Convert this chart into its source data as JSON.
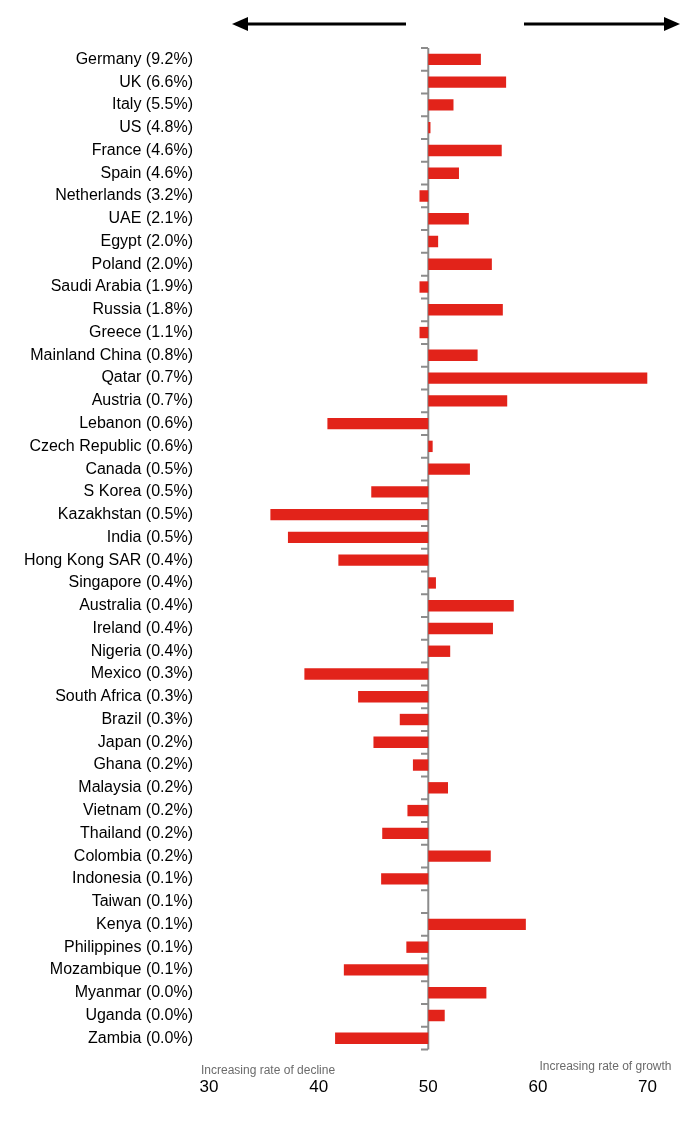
{
  "chart_data": {
    "type": "bar",
    "orientation": "horizontal",
    "categories": [
      "Germany (9.2%)",
      "UK (6.6%)",
      "Italy (5.5%)",
      "US (4.8%)",
      "France (4.6%)",
      "Spain (4.6%)",
      "Netherlands (3.2%)",
      "UAE (2.1%)",
      "Egypt (2.0%)",
      "Poland (2.0%)",
      "Saudi Arabia (1.9%)",
      "Russia (1.8%)",
      "Greece (1.1%)",
      "Mainland China (0.8%)",
      "Qatar (0.7%)",
      "Austria (0.7%)",
      "Lebanon (0.6%)",
      "Czech Republic (0.6%)",
      "Canada (0.5%)",
      "S Korea (0.5%)",
      "Kazakhstan (0.5%)",
      "India (0.5%)",
      "Hong Kong SAR (0.4%)",
      "Singapore (0.4%)",
      "Australia (0.4%)",
      "Ireland (0.4%)",
      "Nigeria (0.4%)",
      "Mexico (0.3%)",
      "South Africa (0.3%)",
      "Brazil (0.3%)",
      "Japan (0.2%)",
      "Ghana (0.2%)",
      "Malaysia (0.2%)",
      "Vietnam (0.2%)",
      "Thailand (0.2%)",
      "Colombia (0.2%)",
      "Indonesia (0.1%)",
      "Taiwan (0.1%)",
      "Kenya (0.1%)",
      "Philippines (0.1%)",
      "Mozambique (0.1%)",
      "Myanmar (0.0%)",
      "Uganda (0.0%)",
      "Zambia (0.0%)"
    ],
    "values": [
      4.8,
      7.1,
      2.3,
      0.2,
      6.7,
      2.8,
      -0.8,
      3.7,
      0.9,
      5.8,
      -0.8,
      6.8,
      -0.8,
      4.5,
      20.0,
      7.2,
      -9.2,
      0.4,
      3.8,
      -5.2,
      -14.4,
      -12.8,
      -8.2,
      0.7,
      7.8,
      5.9,
      2.0,
      -11.3,
      -6.4,
      -2.6,
      -5.0,
      -1.4,
      1.8,
      -1.9,
      -4.2,
      5.7,
      -4.3,
      null,
      8.9,
      -2.0,
      -7.7,
      5.3,
      1.5,
      -8.5
    ],
    "base": [
      50,
      50,
      50,
      50,
      50,
      50,
      50,
      50,
      50,
      50,
      50,
      50,
      50,
      50,
      50,
      50,
      50,
      50,
      50,
      50,
      50,
      50,
      50,
      50,
      50,
      50,
      50,
      50,
      50,
      50,
      50,
      50,
      50,
      50,
      50,
      50,
      50,
      null,
      50,
      50,
      50,
      50,
      50,
      50
    ],
    "color": "#e2231a",
    "xlim": [
      30,
      70
    ],
    "xticks": [
      30,
      40,
      50,
      60,
      70
    ],
    "grid": false,
    "legend": false,
    "ref_lines": [
      {
        "axis": "x",
        "value": 50,
        "color": "#8c8c8c"
      }
    ],
    "annotations": [
      "Increasing rate of decline",
      "Increasing rate of growth"
    ]
  }
}
